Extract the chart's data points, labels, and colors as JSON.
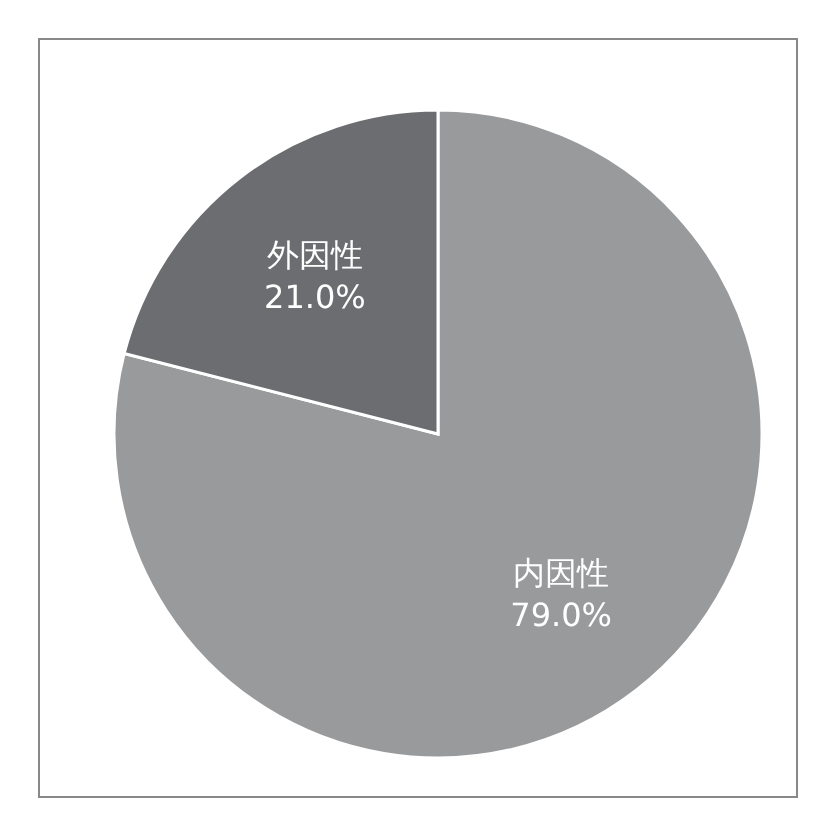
{
  "chart_data": {
    "type": "pie",
    "categories": [
      "内因性",
      "外因性"
    ],
    "values": [
      79.0,
      21.0
    ],
    "colors": [
      "#999a9c",
      "#6c6d70"
    ],
    "value_labels": [
      "79.0%",
      "21.0%"
    ]
  }
}
